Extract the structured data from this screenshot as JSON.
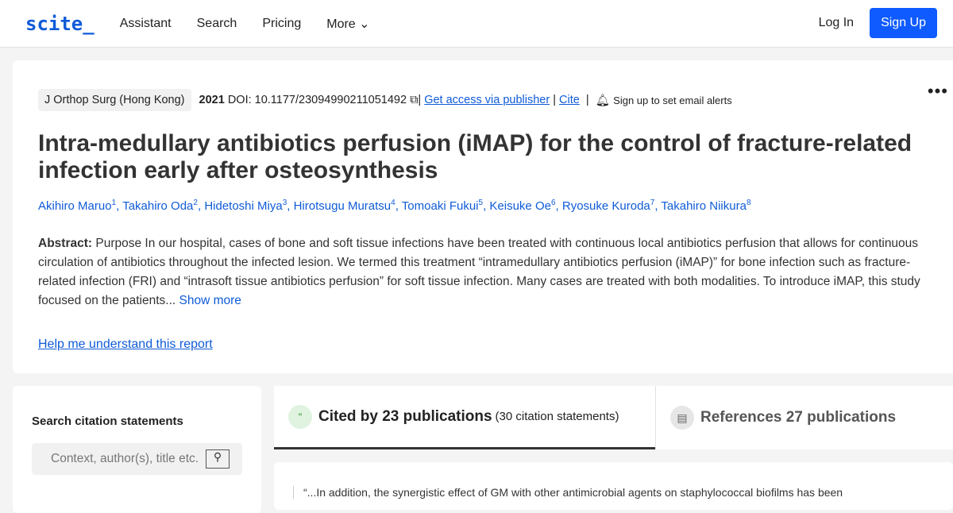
{
  "nav": {
    "logo": "scite_",
    "items": [
      "Assistant",
      "Search",
      "Pricing",
      "More"
    ],
    "login": "Log In",
    "signup": "Sign Up"
  },
  "paper": {
    "journal": "J Orthop Surg (Hong Kong)",
    "year": "2021",
    "doi": "DOI: 10.1177/23094990211051492",
    "access": "Get access via publisher",
    "cite": "Cite",
    "alerts": "Sign up to set email alerts",
    "title": "Intra-medullary antibiotics perfusion (iMAP) for the control of fracture-related infection early after osteosynthesis",
    "authors": [
      {
        "name": "Akihiro Maruo",
        "n": "1"
      },
      {
        "name": "Takahiro Oda",
        "n": "2"
      },
      {
        "name": "Hidetoshi Miya",
        "n": "3"
      },
      {
        "name": "Hirotsugu Muratsu",
        "n": "4"
      },
      {
        "name": "Tomoaki Fukui",
        "n": "5"
      },
      {
        "name": "Keisuke Oe",
        "n": "6"
      },
      {
        "name": "Ryosuke Kuroda",
        "n": "7"
      },
      {
        "name": "Takahiro Niikura",
        "n": "8"
      }
    ],
    "abstract_label": "Abstract:",
    "abstract": "Purpose In our hospital, cases of bone and soft tissue infections have been treated with continuous local antibiotics perfusion that allows for continuous circulation of antibiotics throughout the infected lesion. We termed this treatment “intramedullary antibiotics perfusion (iMAP)” for bone infection such as fracture-related infection (FRI) and “intrasoft tissue antibiotics perfusion” for soft tissue infection. Many cases are treated with both modalities. To introduce iMAP, this study focused on the patients...",
    "show_more": "Show more",
    "help": "Help me understand this report"
  },
  "sidebar": {
    "heading": "Search citation statements",
    "placeholder": "Context, author(s), title etc."
  },
  "tabs": [
    {
      "label": "Cited by 23 publications",
      "sub": "(30 citation statements)",
      "active": true
    },
    {
      "label": "References 27 publications"
    }
  ],
  "statement": "“...In addition, the synergistic effect of GM with other antimicrobial agents on staphylococcal biofilms has been"
}
